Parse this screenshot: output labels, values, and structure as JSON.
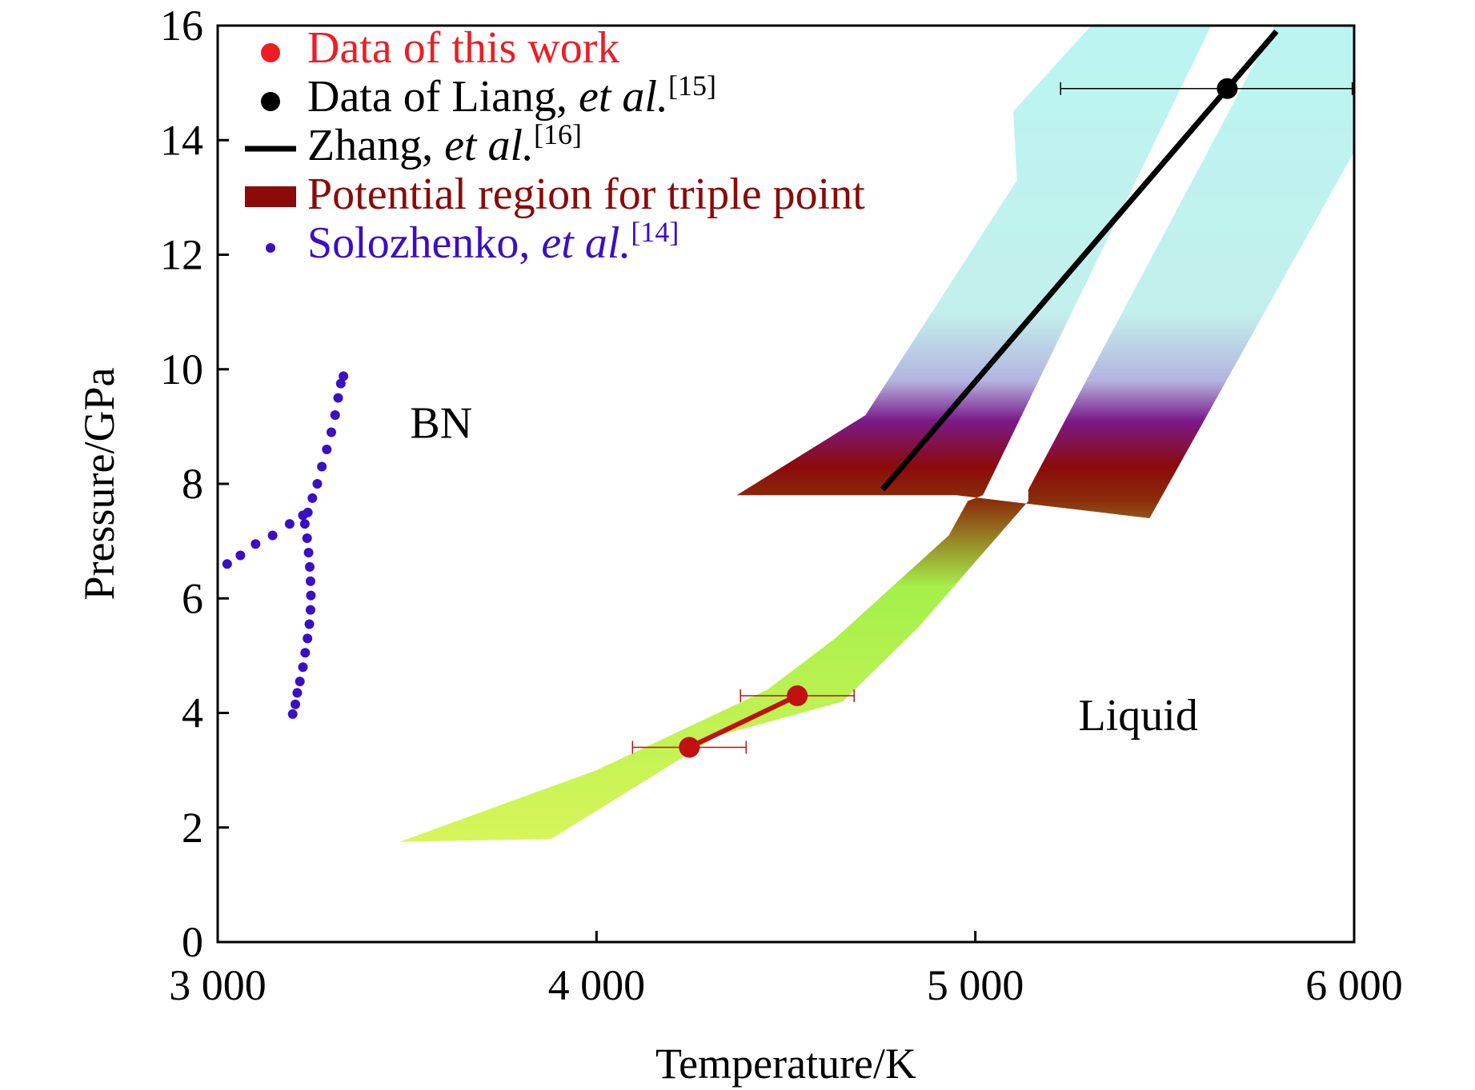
{
  "chart_data": {
    "type": "scatter",
    "xlabel": "Temperature/K",
    "ylabel": "Pressure/GPa",
    "xlim": [
      3000,
      6000
    ],
    "ylim": [
      0,
      16
    ],
    "xticks": [
      3000,
      4000,
      5000,
      6000
    ],
    "xtick_labels": [
      "3 000",
      "4 000",
      "5 000",
      "6 000"
    ],
    "yticks": [
      0,
      2,
      4,
      6,
      8,
      10,
      12,
      14,
      16
    ],
    "ytick_labels": [
      "0",
      "2",
      "4",
      "6",
      "8",
      "10",
      "12",
      "14",
      "16"
    ],
    "grid": false,
    "legend_position": "top-left",
    "legend": [
      {
        "key": "this_work",
        "text": "Data of this work",
        "ref": "",
        "color": "#ee1c24",
        "marker": "circle"
      },
      {
        "key": "liang",
        "text": "Data of Liang, ",
        "italic": "et al.",
        "ref": "[15]",
        "color": "#000000",
        "marker": "circle"
      },
      {
        "key": "zhang",
        "text": "Zhang, ",
        "italic": "et al.",
        "ref": "[16]",
        "color": "#000000",
        "marker": "line"
      },
      {
        "key": "triple",
        "text": "Potential region for triple point",
        "ref": "",
        "color": "#8b0a0a",
        "marker": "rect"
      },
      {
        "key": "solozhenko",
        "text": "Solozhenko, ",
        "italic": "et al.",
        "ref": "[14]",
        "color": "#3a0fc4",
        "marker": "dot"
      }
    ],
    "annotations": [
      {
        "text": "BN",
        "x": 3590,
        "y": 8.8
      },
      {
        "text": "Liquid",
        "x": 5430,
        "y": 3.7
      }
    ],
    "band": {
      "name": "Potential region for triple point",
      "polygon": [
        [
          3480,
          1.75
        ],
        [
          3880,
          1.8
        ],
        [
          4320,
          3.6
        ],
        [
          4650,
          4.2
        ],
        [
          4850,
          5.5
        ],
        [
          5140,
          7.7
        ],
        [
          5140,
          7.9
        ],
        [
          5790,
          16
        ],
        [
          6000,
          16
        ],
        [
          6000,
          13.8
        ],
        [
          5460,
          7.4
        ],
        [
          4950,
          7.8
        ],
        [
          4370,
          7.8
        ],
        [
          4710,
          9.2
        ],
        [
          5110,
          13.3
        ],
        [
          5100,
          14.5
        ],
        [
          5320,
          16.1
        ],
        [
          5630,
          16.1
        ],
        [
          5020,
          7.8
        ],
        [
          4980,
          7.7
        ],
        [
          4930,
          7.1
        ],
        [
          4630,
          5.3
        ],
        [
          4450,
          4.4
        ],
        [
          4000,
          3.0
        ]
      ],
      "color_stops": [
        {
          "y": 16,
          "color": "#baf5f1"
        },
        {
          "y": 11,
          "color": "#c3f0ec"
        },
        {
          "y": 9.8,
          "color": "#b4b4e0"
        },
        {
          "y": 9.1,
          "color": "#7a1a8a"
        },
        {
          "y": 8.3,
          "color": "#8b0a0a"
        },
        {
          "y": 7.7,
          "color": "#8a2e0a"
        },
        {
          "y": 6.2,
          "color": "#a5f04a"
        },
        {
          "y": 1.7,
          "color": "#d8f55a"
        }
      ]
    },
    "series": [
      {
        "name": "Data of this work",
        "color": "#c01010",
        "type": "line-markers",
        "points": [
          {
            "x": 4245,
            "y": 3.4,
            "xerr": 150
          },
          {
            "x": 4530,
            "y": 4.3,
            "xerr": 150
          }
        ]
      },
      {
        "name": "Data of Liang, et al.[15]",
        "color": "#000000",
        "type": "markers",
        "points": [
          {
            "x": 5665,
            "y": 14.9,
            "xerr_low": 440,
            "xerr_high": 330
          }
        ]
      },
      {
        "name": "Zhang, et al.[16]",
        "color": "#000000",
        "type": "line",
        "points": [
          {
            "x": 4755,
            "y": 7.9
          },
          {
            "x": 5795,
            "y": 15.9
          }
        ]
      },
      {
        "name": "Solozhenko, et al.[14] (lower branch)",
        "color": "#3a0fc4",
        "type": "dots",
        "points": [
          {
            "x": 3198,
            "y": 3.98
          },
          {
            "x": 3205,
            "y": 4.15
          },
          {
            "x": 3210,
            "y": 4.35
          },
          {
            "x": 3217,
            "y": 4.55
          },
          {
            "x": 3225,
            "y": 4.8
          },
          {
            "x": 3231,
            "y": 5.05
          },
          {
            "x": 3237,
            "y": 5.3
          },
          {
            "x": 3242,
            "y": 5.55
          },
          {
            "x": 3245,
            "y": 5.8
          },
          {
            "x": 3246,
            "y": 6.05
          },
          {
            "x": 3245,
            "y": 6.3
          },
          {
            "x": 3243,
            "y": 6.55
          },
          {
            "x": 3240,
            "y": 6.8
          },
          {
            "x": 3236,
            "y": 7.05
          },
          {
            "x": 3230,
            "y": 7.3
          },
          {
            "x": 3238,
            "y": 7.5
          },
          {
            "x": 3250,
            "y": 7.75
          },
          {
            "x": 3263,
            "y": 8.0
          },
          {
            "x": 3275,
            "y": 8.3
          },
          {
            "x": 3288,
            "y": 8.6
          },
          {
            "x": 3300,
            "y": 8.9
          },
          {
            "x": 3310,
            "y": 9.2
          },
          {
            "x": 3318,
            "y": 9.5
          },
          {
            "x": 3325,
            "y": 9.75
          },
          {
            "x": 3332,
            "y": 9.88
          }
        ]
      },
      {
        "name": "Solozhenko, et al.[14] (left branch)",
        "color": "#3a0fc4",
        "type": "dots",
        "points": [
          {
            "x": 3025,
            "y": 6.6
          },
          {
            "x": 3060,
            "y": 6.75
          },
          {
            "x": 3100,
            "y": 6.95
          },
          {
            "x": 3145,
            "y": 7.1
          },
          {
            "x": 3190,
            "y": 7.3
          },
          {
            "x": 3225,
            "y": 7.45
          }
        ]
      }
    ]
  }
}
